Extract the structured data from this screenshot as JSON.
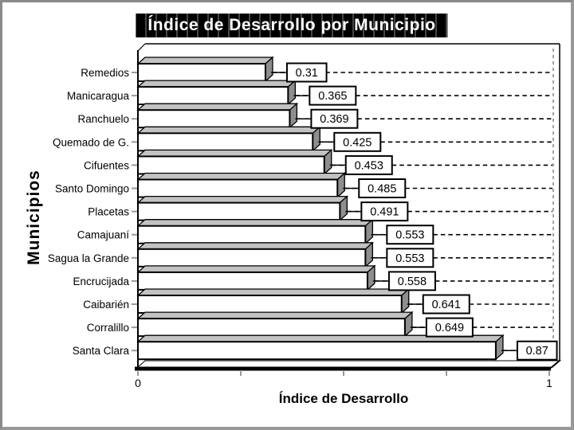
{
  "slide": {
    "background": "#ffffff",
    "border_color": "#8f8f8f"
  },
  "chart_title": {
    "text": "Índice de Desarrollo por Municipio",
    "bg": "#000000",
    "fg": "#ffffff"
  },
  "axes": {
    "y_title": "Municipios",
    "x_title": "Índice de Desarrollo",
    "x_min_label": "0",
    "x_max_label": "1"
  },
  "chart_data": {
    "type": "bar",
    "orientation": "horizontal",
    "title": "Índice de Desarrollo por Municipio",
    "xlabel": "Índice de Desarrollo",
    "ylabel": "Municipios",
    "xlim": [
      0,
      1
    ],
    "x_ticks": [
      0,
      0.25,
      0.5,
      0.75,
      1
    ],
    "x_tick_labels": [
      "0",
      "",
      "",
      "",
      "1"
    ],
    "grid": "dashed horizontal leader line per bar to right wall",
    "legend": "none",
    "style": "3d horizontal bars, white front faces, gray top/side faces, boxed data labels",
    "categories": [
      "Remedios",
      "Manicaragua",
      "Ranchuelo",
      "Quemado de G.",
      "Cifuentes",
      "Santo Domingo",
      "Placetas",
      "Camajuaní",
      "Sagua la Grande",
      "Encrucijada",
      "Caibarién",
      "Corralillo",
      "Santa Clara"
    ],
    "values": [
      0.31,
      0.365,
      0.369,
      0.425,
      0.453,
      0.485,
      0.491,
      0.553,
      0.553,
      0.558,
      0.641,
      0.649,
      0.87
    ],
    "data_labels": [
      "0.31",
      "0.365",
      "0.369",
      "0.425",
      "0.453",
      "0.485",
      "0.491",
      "0.553",
      "0.553",
      "0.558",
      "0.641",
      "0.649",
      "0.87"
    ],
    "colors": {
      "bar_front": "#ffffff",
      "bar_top": "#c2c2c2",
      "bar_side": "#8e8e8e",
      "outline": "#000000",
      "tick": "#9a9a9a",
      "back_wall_dash": "#666666"
    }
  }
}
